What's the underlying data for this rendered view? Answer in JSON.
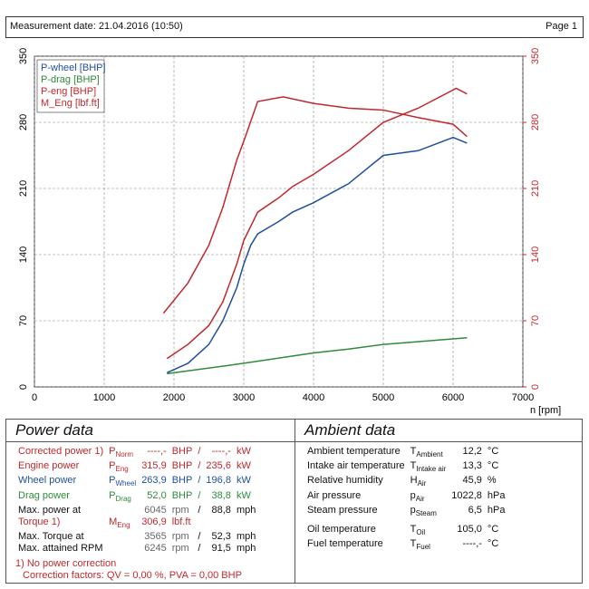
{
  "header": {
    "date": "Measurement date: 21.04.2016 (10:50)",
    "page": "Page 1"
  },
  "chart_data": {
    "type": "line",
    "xlabel": "n [rpm]",
    "xlim": [
      0,
      7000
    ],
    "xticks": [
      0,
      1000,
      2000,
      3000,
      4000,
      5000,
      6000,
      7000
    ],
    "ylim": [
      0,
      350
    ],
    "yticks": [
      0,
      70,
      140,
      210,
      280,
      350
    ],
    "y2lim": [
      0,
      350
    ],
    "y2ticks": [
      0,
      70,
      140,
      210,
      280,
      350
    ],
    "y2color": "#c0282d",
    "grid": true,
    "legend": "top-left",
    "series": [
      {
        "name": "P-wheel [BHP]",
        "color": "#1f4f9c",
        "x": [
          1900,
          2200,
          2500,
          2700,
          2900,
          3000,
          3100,
          3200,
          3500,
          3700,
          4000,
          4500,
          5000,
          5500,
          6000,
          6200
        ],
        "values": [
          15,
          25,
          45,
          70,
          105,
          130,
          150,
          162,
          175,
          185,
          195,
          215,
          245,
          250,
          264,
          258
        ]
      },
      {
        "name": "P-drag [BHP]",
        "color": "#2e8b3a",
        "x": [
          1900,
          3000,
          4000,
          4500,
          5000,
          6200
        ],
        "values": [
          14,
          25,
          36,
          40,
          45,
          52
        ]
      },
      {
        "name": "P-eng [BHP]",
        "color": "#c0282d",
        "x": [
          1900,
          2200,
          2500,
          2700,
          2900,
          3000,
          3200,
          3500,
          3700,
          4000,
          4500,
          5000,
          5500,
          6045,
          6200
        ],
        "values": [
          30,
          45,
          65,
          90,
          130,
          155,
          185,
          200,
          212,
          225,
          250,
          280,
          295,
          316,
          310
        ]
      },
      {
        "name": "M_Eng [lbf.ft]",
        "color": "#c0282d",
        "x": [
          1850,
          2200,
          2500,
          2700,
          2900,
          3000,
          3200,
          3565,
          4000,
          4500,
          5000,
          5500,
          6000,
          6200
        ],
        "values": [
          78,
          110,
          150,
          190,
          240,
          260,
          302,
          307,
          300,
          295,
          293,
          285,
          278,
          265
        ]
      }
    ]
  },
  "power_data": {
    "title": "Power data",
    "rows": [
      {
        "label": "Corrected power 1)",
        "sym": "P",
        "sub": "Norm",
        "v1": "----,-",
        "u1": "BHP",
        "sep": "/",
        "v2": "----,-",
        "u2": "kW",
        "color": "#c0282d"
      },
      {
        "label": "Engine power",
        "sym": "P",
        "sub": "Eng",
        "v1": "315,9",
        "u1": "BHP",
        "sep": "/",
        "v2": "235,6",
        "u2": "kW",
        "color": "#c0282d"
      },
      {
        "label": "Wheel power",
        "sym": "P",
        "sub": "Wheel",
        "v1": "263,9",
        "u1": "BHP",
        "sep": "/",
        "v2": "196,8",
        "u2": "kW",
        "color": "#1f4f9c"
      },
      {
        "label": "Drag power",
        "sym": "P",
        "sub": "Drag",
        "v1": "52,0",
        "u1": "BHP",
        "sep": "/",
        "v2": "38,8",
        "u2": "kW",
        "color": "#2e8b3a"
      },
      {
        "label": "Max. power at",
        "v1": "6045",
        "u1": "rpm",
        "sep": "/",
        "v2": "88,8",
        "u2": "mph",
        "color": "#111"
      },
      {
        "label": "Torque 1)",
        "sym": "M",
        "sub": "Eng",
        "v1": "306,9",
        "u1": "lbf.ft",
        "color": "#c0282d"
      },
      {
        "label": "Max. Torque at",
        "v1": "3565",
        "u1": "rpm",
        "sep": "/",
        "v2": "52,3",
        "u2": "mph",
        "color": "#111"
      },
      {
        "label": "Max. attained RPM",
        "v1": "6245",
        "u1": "rpm",
        "sep": "/",
        "v2": "91,5",
        "u2": "mph",
        "color": "#111"
      }
    ],
    "footnote": "1) No power correction",
    "correction": "Correction factors: QV = 0,00 %, PVA = 0,00 BHP"
  },
  "ambient_data": {
    "title": "Ambient data",
    "rows": [
      {
        "label": "Ambient temperature",
        "sym": "T",
        "sub": "Ambient",
        "value": "12,2",
        "unit": "°C"
      },
      {
        "label": "Intake air temperature",
        "sym": "T",
        "sub": "Intake air",
        "value": "13,3",
        "unit": "°C"
      },
      {
        "label": "Relative humidity",
        "sym": "H",
        "sub": "Air",
        "value": "45,9",
        "unit": "%"
      },
      {
        "label": "Air pressure",
        "sym": "p",
        "sub": "Air",
        "value": "1022,8",
        "unit": "hPa"
      },
      {
        "label": "Steam pressure",
        "sym": "p",
        "sub": "Steam",
        "value": "6,5",
        "unit": "hPa"
      },
      {
        "label": "Oil temperature",
        "sym": "T",
        "sub": "Oil",
        "value": "105,0",
        "unit": "°C"
      },
      {
        "label": "Fuel temperature",
        "sym": "T",
        "sub": "Fuel",
        "value": "----,-",
        "unit": "°C"
      }
    ]
  }
}
